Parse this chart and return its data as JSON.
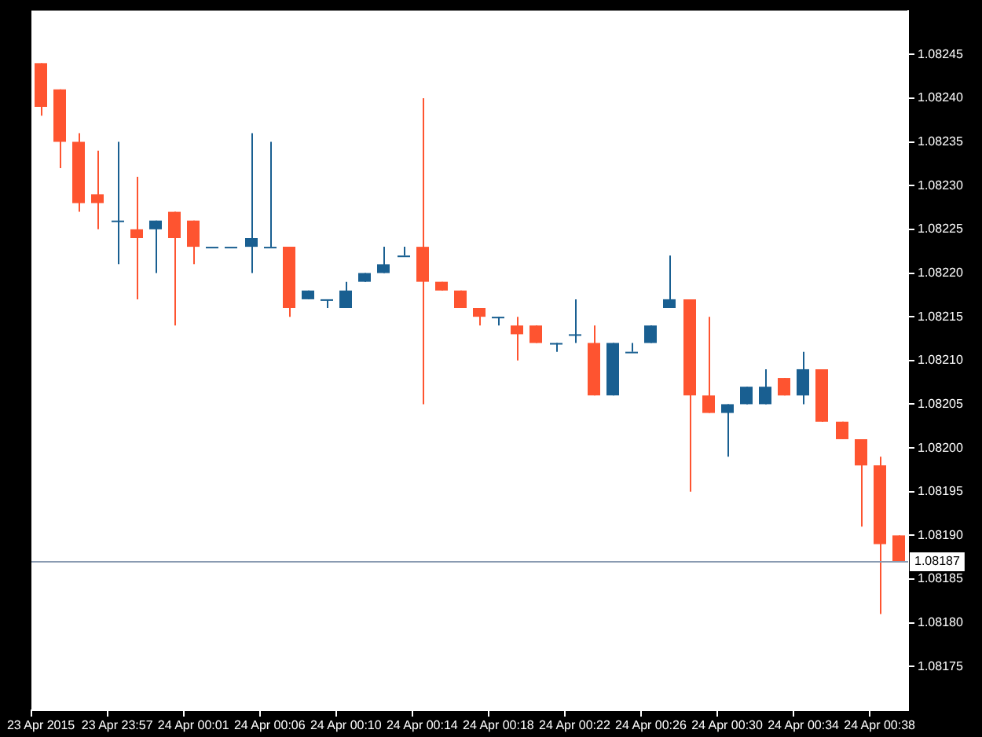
{
  "chart_data": {
    "type": "candlestick",
    "categories": [
      "23 Apr 2015",
      null,
      null,
      null,
      "23 Apr 23:57",
      null,
      null,
      null,
      "24 Apr 00:01",
      null,
      null,
      null,
      "24 Apr 00:06",
      null,
      null,
      null,
      "24 Apr 00:10",
      null,
      null,
      null,
      "24 Apr 00:14",
      null,
      null,
      null,
      "24 Apr 00:18",
      null,
      null,
      null,
      "24 Apr 00:22",
      null,
      null,
      null,
      "24 Apr 00:26",
      null,
      null,
      null,
      "24 Apr 00:30",
      null,
      null,
      null,
      "24 Apr 00:34",
      null,
      null,
      null,
      "24 Apr 00:38",
      null
    ],
    "ohlc": [
      [
        1.08244,
        1.08244,
        1.08238,
        1.08239
      ],
      [
        1.08241,
        1.08241,
        1.08232,
        1.08235
      ],
      [
        1.08235,
        1.08236,
        1.08227,
        1.08228
      ],
      [
        1.08229,
        1.08234,
        1.08225,
        1.08228
      ],
      [
        1.08226,
        1.08235,
        1.08221,
        1.08226
      ],
      [
        1.08225,
        1.08231,
        1.08217,
        1.08224
      ],
      [
        1.08225,
        1.08226,
        1.0822,
        1.08226
      ],
      [
        1.08227,
        1.08227,
        1.08214,
        1.08224
      ],
      [
        1.08226,
        1.08226,
        1.08221,
        1.08223
      ],
      [
        1.08223,
        1.08223,
        1.08223,
        1.08223
      ],
      [
        1.08223,
        1.08223,
        1.08223,
        1.08223
      ],
      [
        1.08223,
        1.08236,
        1.0822,
        1.08224
      ],
      [
        1.08223,
        1.08235,
        1.08223,
        1.08223
      ],
      [
        1.08223,
        1.08223,
        1.08215,
        1.08216
      ],
      [
        1.08217,
        1.08218,
        1.08217,
        1.08218
      ],
      [
        1.08217,
        1.08217,
        1.08216,
        1.08217
      ],
      [
        1.08216,
        1.08219,
        1.08216,
        1.08218
      ],
      [
        1.08219,
        1.0822,
        1.08219,
        1.0822
      ],
      [
        1.0822,
        1.08223,
        1.0822,
        1.08221
      ],
      [
        1.08222,
        1.08223,
        1.08222,
        1.08222
      ],
      [
        1.08223,
        1.0824,
        1.08205,
        1.08219
      ],
      [
        1.08219,
        1.08219,
        1.08218,
        1.08218
      ],
      [
        1.08218,
        1.08218,
        1.08216,
        1.08216
      ],
      [
        1.08216,
        1.08216,
        1.08214,
        1.08215
      ],
      [
        1.08215,
        1.08215,
        1.08214,
        1.08215
      ],
      [
        1.08214,
        1.08215,
        1.0821,
        1.08213
      ],
      [
        1.08214,
        1.08214,
        1.08212,
        1.08212
      ],
      [
        1.08212,
        1.08212,
        1.08211,
        1.08212
      ],
      [
        1.08213,
        1.08217,
        1.08212,
        1.08213
      ],
      [
        1.08212,
        1.08214,
        1.08206,
        1.08206
      ],
      [
        1.08206,
        1.08212,
        1.08206,
        1.08212
      ],
      [
        1.08211,
        1.08212,
        1.08211,
        1.08211
      ],
      [
        1.08212,
        1.08214,
        1.08212,
        1.08214
      ],
      [
        1.08216,
        1.08222,
        1.08216,
        1.08217
      ],
      [
        1.08217,
        1.08217,
        1.08195,
        1.08206
      ],
      [
        1.08206,
        1.08215,
        1.08204,
        1.08204
      ],
      [
        1.08204,
        1.08205,
        1.08199,
        1.08205
      ],
      [
        1.08205,
        1.08207,
        1.08205,
        1.08207
      ],
      [
        1.08205,
        1.08209,
        1.08205,
        1.08207
      ],
      [
        1.08208,
        1.08208,
        1.08206,
        1.08206
      ],
      [
        1.08206,
        1.08211,
        1.08205,
        1.08209
      ],
      [
        1.08209,
        1.08209,
        1.08203,
        1.08203
      ],
      [
        1.08203,
        1.08203,
        1.08201,
        1.08201
      ],
      [
        1.08201,
        1.08201,
        1.08191,
        1.08198
      ],
      [
        1.08198,
        1.08199,
        1.08181,
        1.08189
      ],
      [
        1.0819,
        1.0819,
        1.08187,
        1.08187
      ]
    ],
    "colors": [
      "#fe5430",
      "#fe5430",
      "#fe5430",
      "#fe5430",
      "#195f91",
      "#fe5430",
      "#195f91",
      "#fe5430",
      "#fe5430",
      "#195f91",
      "#195f91",
      "#195f91",
      "#195f91",
      "#fe5430",
      "#195f91",
      "#195f91",
      "#195f91",
      "#195f91",
      "#195f91",
      "#195f91",
      "#fe5430",
      "#fe5430",
      "#fe5430",
      "#fe5430",
      "#195f91",
      "#fe5430",
      "#fe5430",
      "#195f91",
      "#195f91",
      "#fe5430",
      "#195f91",
      "#195f91",
      "#195f91",
      "#195f91",
      "#fe5430",
      "#fe5430",
      "#195f91",
      "#195f91",
      "#195f91",
      "#fe5430",
      "#195f91",
      "#fe5430",
      "#fe5430",
      "#fe5430",
      "#fe5430",
      "#fe5430"
    ],
    "ylim": [
      1.0817,
      1.0825
    ],
    "yticks": [
      1.08175,
      {
        "value": 1.0818,
        "label": "1.08180"
      },
      1.08185,
      {
        "value": 1.0819,
        "label": "1.08190"
      },
      1.08195,
      {
        "value": 1.082,
        "label": "1.08200"
      },
      1.08205,
      {
        "value": 1.0821,
        "label": "1.08210"
      },
      1.08215,
      {
        "value": 1.0822,
        "label": "1.08220"
      },
      1.08225,
      {
        "value": 1.0823,
        "label": "1.08230"
      },
      1.08235,
      {
        "value": 1.0824,
        "label": "1.08240"
      },
      1.08245
    ],
    "ref_lines": [
      {
        "axis": "y",
        "value": 1.08187,
        "label": "1.08187",
        "color": "#8a9bb2"
      }
    ]
  }
}
